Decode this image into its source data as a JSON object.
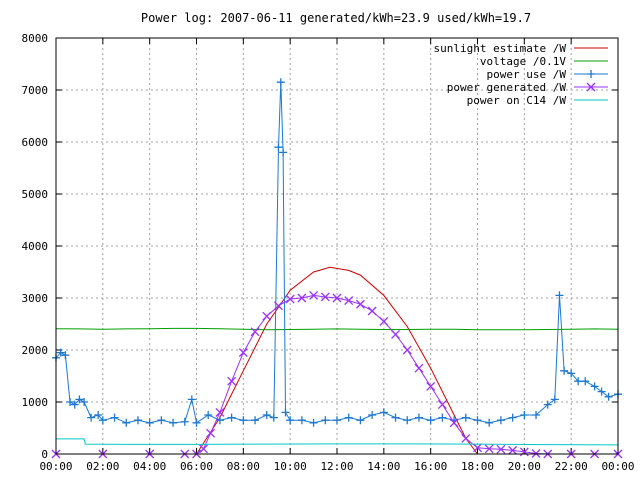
{
  "chart_data": {
    "type": "line",
    "title": "Power log: 2007-06-11 generated/kWh=23.9 used/kWh=19.7",
    "xlabel": "",
    "ylabel": "",
    "x_unit": "hours",
    "xlim": [
      0,
      24
    ],
    "ylim": [
      0,
      8000
    ],
    "x_ticks": [
      0,
      2,
      4,
      6,
      8,
      10,
      12,
      14,
      16,
      18,
      20,
      22,
      24
    ],
    "x_tick_labels": [
      "00:00",
      "02:00",
      "04:00",
      "06:00",
      "08:00",
      "10:00",
      "12:00",
      "14:00",
      "16:00",
      "18:00",
      "20:00",
      "22:00",
      "00:00"
    ],
    "y_ticks": [
      0,
      1000,
      2000,
      3000,
      4000,
      5000,
      6000,
      7000,
      8000
    ],
    "y_tick_labels": [
      "0",
      "1000",
      "2000",
      "3000",
      "4000",
      "5000",
      "6000",
      "7000",
      "8000"
    ],
    "grid": true,
    "legend_position": "top-right",
    "series": [
      {
        "name": "sunlight estimate /W",
        "color": "#cc0000",
        "marker": "none",
        "x": [
          6.0,
          7.0,
          8.0,
          9.0,
          10.0,
          11.0,
          11.7,
          12.5,
          13.0,
          14.0,
          15.0,
          16.0,
          17.0,
          17.5,
          18.0
        ],
        "values": [
          0,
          700,
          1600,
          2500,
          3150,
          3500,
          3590,
          3530,
          3440,
          3050,
          2450,
          1650,
          750,
          300,
          0
        ]
      },
      {
        "name": "voltage /0.1V",
        "color": "#00a000",
        "marker": "none",
        "x": [
          0,
          1,
          2,
          3,
          4,
          5,
          6,
          7,
          8,
          9,
          10,
          11,
          12,
          13,
          14,
          15,
          16,
          17,
          18,
          19,
          20,
          21,
          22,
          23,
          24
        ],
        "values": [
          2410,
          2405,
          2400,
          2405,
          2410,
          2415,
          2415,
          2410,
          2400,
          2390,
          2395,
          2400,
          2405,
          2400,
          2395,
          2395,
          2400,
          2400,
          2390,
          2390,
          2390,
          2395,
          2400,
          2405,
          2400
        ]
      },
      {
        "name": "power use /W",
        "color": "#1e78d0",
        "marker": "plus",
        "x": [
          0.0,
          0.2,
          0.4,
          0.6,
          0.8,
          1.0,
          1.2,
          1.5,
          1.8,
          2.0,
          2.5,
          3.0,
          3.5,
          4.0,
          4.5,
          5.0,
          5.5,
          5.8,
          6.0,
          6.5,
          7.0,
          7.5,
          8.0,
          8.5,
          9.0,
          9.3,
          9.5,
          9.6,
          9.7,
          9.8,
          10.0,
          10.5,
          11.0,
          11.5,
          12.0,
          12.5,
          13.0,
          13.5,
          14.0,
          14.5,
          15.0,
          15.5,
          16.0,
          16.5,
          17.0,
          17.5,
          18.0,
          18.5,
          19.0,
          19.5,
          20.0,
          20.5,
          21.0,
          21.3,
          21.5,
          21.7,
          22.0,
          22.3,
          22.6,
          23.0,
          23.3,
          23.6,
          24.0
        ],
        "values": [
          1850,
          1950,
          1900,
          1000,
          950,
          1050,
          1000,
          700,
          750,
          650,
          700,
          600,
          650,
          600,
          650,
          600,
          620,
          1050,
          600,
          750,
          650,
          700,
          650,
          650,
          750,
          700,
          5900,
          7150,
          5800,
          800,
          650,
          650,
          600,
          650,
          650,
          700,
          650,
          750,
          800,
          700,
          650,
          700,
          650,
          700,
          650,
          700,
          650,
          600,
          650,
          700,
          750,
          750,
          950,
          1050,
          3050,
          1600,
          1550,
          1400,
          1400,
          1300,
          1200,
          1100,
          1150
        ]
      },
      {
        "name": "power generated /W",
        "color": "#9b30ff",
        "marker": "x",
        "x": [
          0,
          2,
          4,
          5.5,
          6.0,
          6.3,
          6.6,
          7.0,
          7.5,
          8.0,
          8.5,
          9.0,
          9.5,
          10.0,
          10.5,
          11.0,
          11.5,
          12.0,
          12.5,
          13.0,
          13.5,
          14.0,
          14.5,
          15.0,
          15.5,
          16.0,
          16.5,
          17.0,
          17.5,
          18.0,
          18.5,
          19.0,
          19.5,
          20.0,
          20.5,
          21.0,
          22.0,
          23.0,
          24.0
        ],
        "values": [
          0,
          0,
          0,
          0,
          0,
          100,
          400,
          800,
          1400,
          1950,
          2350,
          2650,
          2850,
          2980,
          3000,
          3050,
          3020,
          3000,
          2950,
          2880,
          2750,
          2550,
          2300,
          2000,
          1650,
          1300,
          950,
          600,
          300,
          120,
          100,
          90,
          70,
          40,
          10,
          0,
          0,
          0,
          0
        ]
      },
      {
        "name": "power on C14 /W",
        "color": "#00c8c8",
        "marker": "none",
        "x": [
          0,
          1.2,
          1.25,
          3,
          6,
          9,
          12,
          15,
          18,
          21,
          24
        ],
        "values": [
          290,
          290,
          190,
          185,
          185,
          190,
          195,
          195,
          190,
          180,
          175
        ]
      }
    ]
  }
}
